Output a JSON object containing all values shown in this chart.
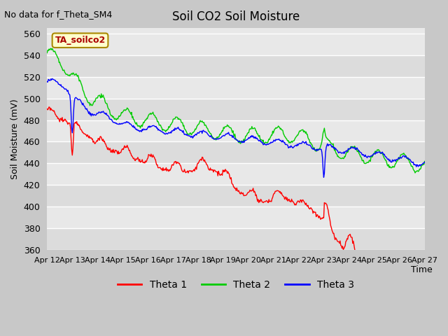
{
  "title": "Soil CO2 Soil Moisture",
  "no_data_text": "No data for f_Theta_SM4",
  "annotation_text": "TA_soilco2",
  "xlabel": "Time",
  "ylabel": "Soil Moisture (mV)",
  "ylim": [
    360,
    565
  ],
  "yticks": [
    360,
    380,
    400,
    420,
    440,
    460,
    480,
    500,
    520,
    540,
    560
  ],
  "bg_color": "#e8e8e8",
  "legend_labels": [
    "Theta 1",
    "Theta 2",
    "Theta 3"
  ],
  "legend_colors": [
    "#ff0000",
    "#00bb00",
    "#0000ff"
  ],
  "x_tick_labels": [
    "Apr 12",
    "Apr 13",
    "Apr 14",
    "Apr 15",
    "Apr 16",
    "Apr 17",
    "Apr 18",
    "Apr 19",
    "Apr 20",
    "Apr 21",
    "Apr 22",
    "Apr 23",
    "Apr 24",
    "Apr 25",
    "Apr 26",
    "Apr 27"
  ]
}
